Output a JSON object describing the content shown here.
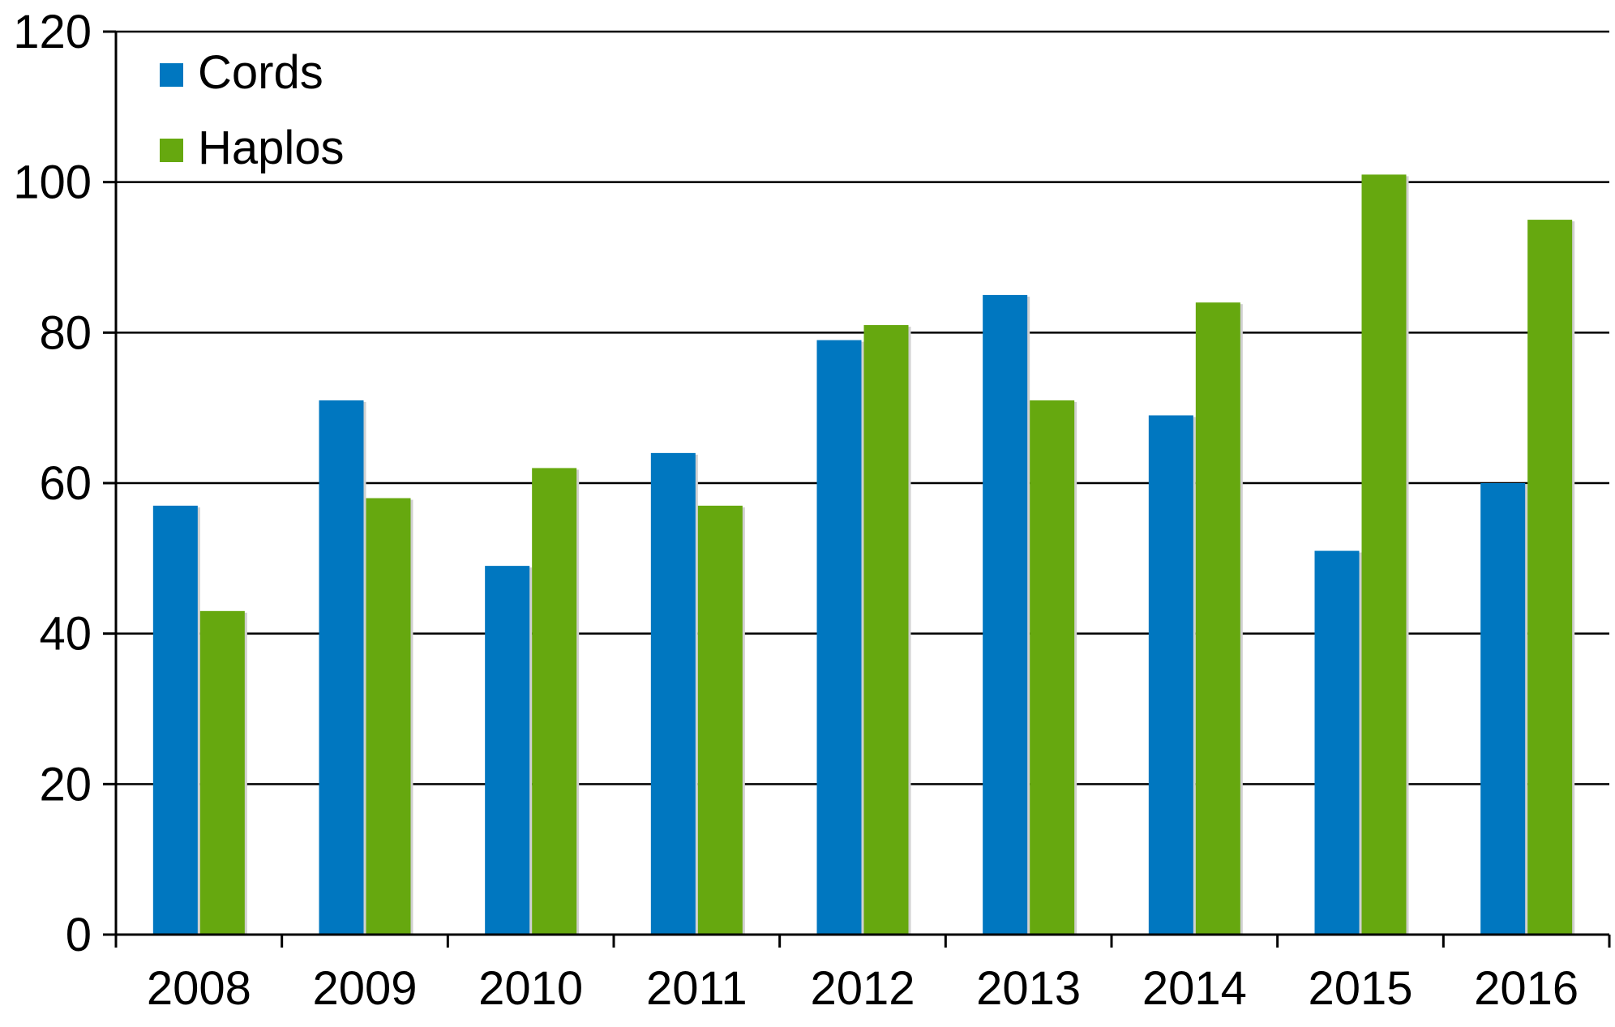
{
  "chart_data": {
    "type": "bar",
    "title": "",
    "xlabel": "",
    "ylabel": "",
    "categories": [
      "2008",
      "2009",
      "2010",
      "2011",
      "2012",
      "2013",
      "2014",
      "2015",
      "2016"
    ],
    "series": [
      {
        "name": "Cords",
        "color": "#0077c0",
        "values": [
          57,
          71,
          49,
          64,
          79,
          85,
          69,
          51,
          60
        ]
      },
      {
        "name": "Haplos",
        "color": "#66a80f",
        "values": [
          43,
          58,
          62,
          57,
          81,
          71,
          84,
          101,
          95
        ]
      }
    ],
    "ylim": [
      0,
      120
    ],
    "yticks": [
      0,
      20,
      40,
      60,
      80,
      100,
      120
    ],
    "grid": true,
    "legend_position": "top-left"
  }
}
